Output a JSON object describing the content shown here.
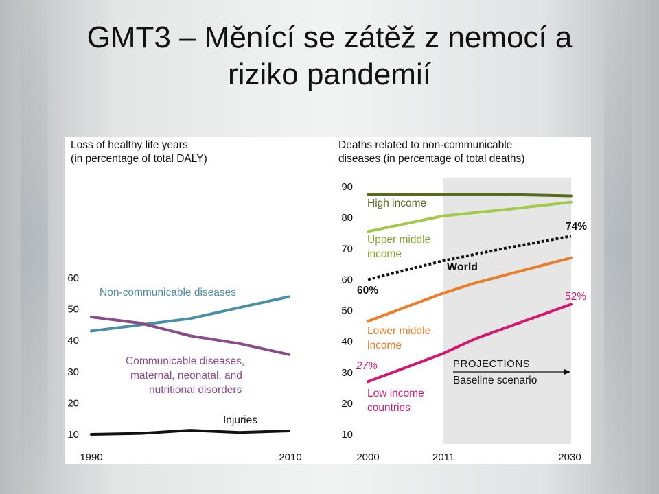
{
  "slide": {
    "title_line1": "GMT3 – Měnící se zátěž z nemocí a",
    "title_line2": "riziko pandemií"
  },
  "colors": {
    "ncd_teal": "#4a8fa8",
    "cd_purple": "#8b4a8c",
    "injuries_black": "#111111",
    "high_income": "#556b1f",
    "upper_middle": "#a3c94a",
    "world": "#111111",
    "lower_middle": "#ec7c2a",
    "low_income": "#d6166f",
    "projection_shade": "#e6e6e6"
  },
  "chart_data": [
    {
      "type": "line",
      "title": "Loss of healthy life years (in percentage of total DALY)",
      "title_line1": "Loss of healthy life years",
      "title_line2": "(in percentage of total DALY)",
      "x_tick_labels": [
        "1990",
        "2010"
      ],
      "xlim": [
        1990,
        2010
      ],
      "ylim": [
        10,
        60
      ],
      "y_ticks": [
        "10",
        "20",
        "30",
        "40",
        "50",
        "60"
      ],
      "series": [
        {
          "name": "Non-communicable diseases",
          "color": "#4a8fa8",
          "x": [
            1990,
            1995,
            2000,
            2005,
            2010
          ],
          "values": [
            43,
            45,
            47,
            50.5,
            54
          ]
        },
        {
          "name": "Communicable diseases, maternal, neonatal, and nutritional disorders",
          "label_lines": [
            "Communicable diseases,",
            "maternal, neonatal, and",
            "nutritional disorders"
          ],
          "color": "#8b4a8c",
          "x": [
            1990,
            1995,
            2000,
            2005,
            2010
          ],
          "values": [
            47.5,
            45.5,
            41.5,
            39,
            35.5
          ]
        },
        {
          "name": "Injuries",
          "color": "#111111",
          "x": [
            1990,
            1995,
            2000,
            2005,
            2010
          ],
          "values": [
            10,
            10.3,
            11.3,
            10.6,
            11.1
          ]
        }
      ]
    },
    {
      "type": "line",
      "title": "Deaths related to non-communicable diseases (in percentage of total deaths)",
      "title_line1": "Deaths related to non-communicable",
      "title_line2": "diseases (in percentage of total deaths)",
      "x_tick_labels": [
        "2000",
        "2011",
        "2030"
      ],
      "xlim": [
        2000,
        2030
      ],
      "ylim": [
        10,
        90
      ],
      "y_ticks": [
        "10",
        "20",
        "30",
        "40",
        "50",
        "60",
        "70",
        "80",
        "90"
      ],
      "projection_start": 2011,
      "projection_label": "PROJECTIONS",
      "projection_sublabel": "Baseline scenario",
      "series": [
        {
          "name": "High income",
          "color": "#556b1f",
          "x": [
            2000,
            2011,
            2020,
            2030
          ],
          "values": [
            87.5,
            87.5,
            87.5,
            87
          ]
        },
        {
          "name": "Upper middle income",
          "label_lines": [
            "Upper middle",
            "income"
          ],
          "color": "#a3c94a",
          "x": [
            2000,
            2011,
            2020,
            2030
          ],
          "values": [
            75.5,
            80.5,
            82.5,
            85
          ]
        },
        {
          "name": "World",
          "color": "#111111",
          "dashed": true,
          "x": [
            2000,
            2011,
            2020,
            2030
          ],
          "values": [
            60,
            66,
            70,
            74
          ],
          "start_label": "60%",
          "end_label": "74%"
        },
        {
          "name": "Lower middle income",
          "label_lines": [
            "Lower middle",
            "income"
          ],
          "color": "#ec7c2a",
          "x": [
            2000,
            2011,
            2016,
            2030
          ],
          "values": [
            46.5,
            55.5,
            59,
            67
          ]
        },
        {
          "name": "Low income countries",
          "label_lines": [
            "Low income",
            "countries"
          ],
          "color": "#d6166f",
          "x": [
            2000,
            2011,
            2016,
            2030
          ],
          "values": [
            27,
            36,
            41,
            52
          ],
          "start_label": "27%",
          "end_label": "52%"
        }
      ]
    }
  ]
}
